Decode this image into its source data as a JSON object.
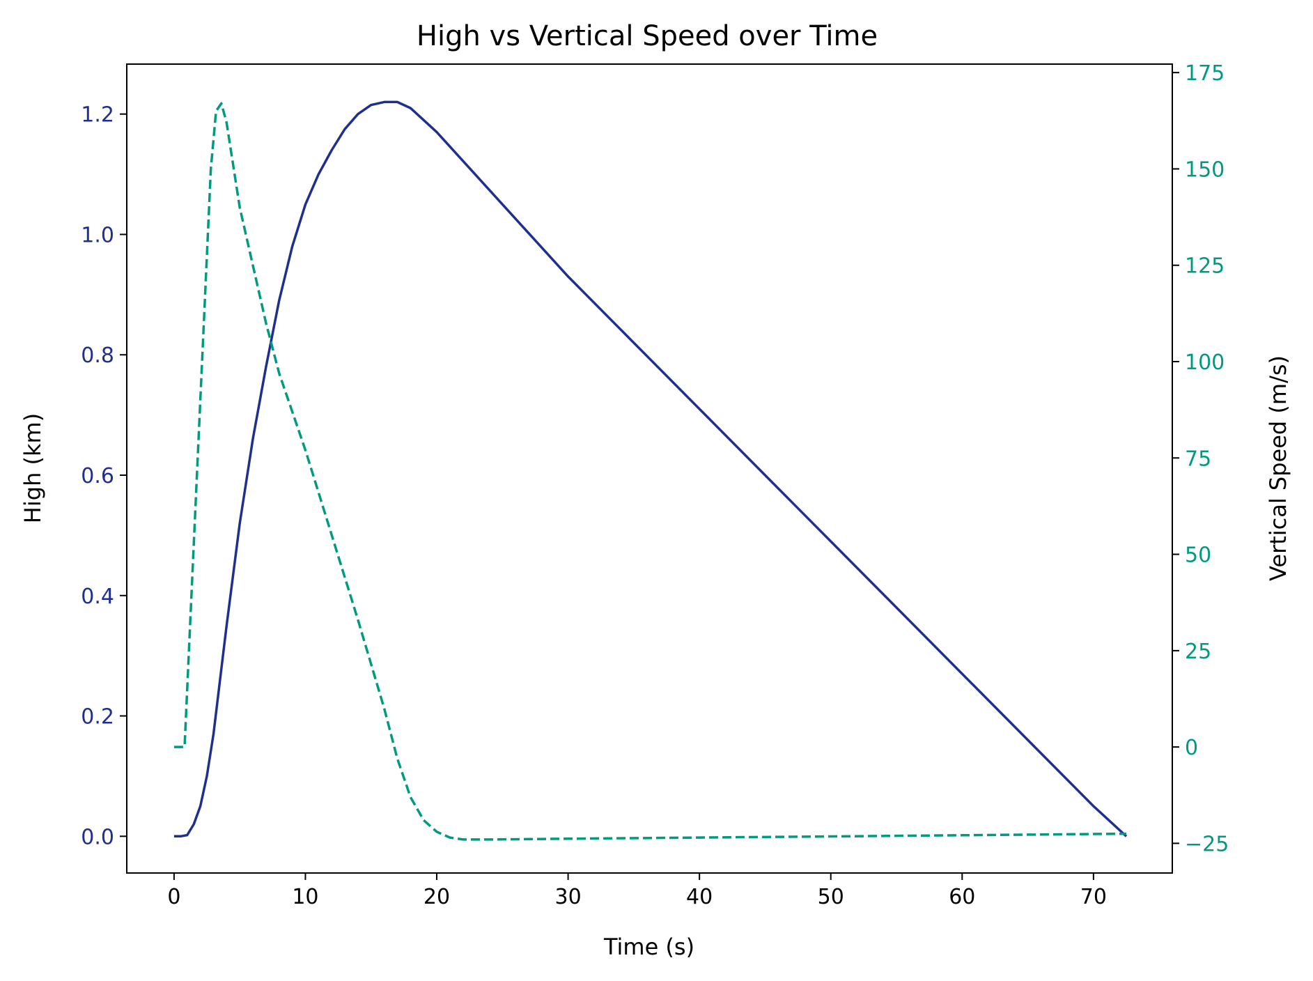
{
  "chart_data": {
    "type": "line",
    "title": "High vs Vertical Speed over Time",
    "xlabel": "Time (s)",
    "ylabel_left": "High (km)",
    "ylabel_right": "Vertical Speed (m/s)",
    "xlim": [
      -3.6,
      76
    ],
    "ylim_left": [
      -0.061,
      1.283
    ],
    "ylim_right": [
      -32.7,
      177.2
    ],
    "x_ticks": [
      0,
      10,
      20,
      30,
      40,
      50,
      60,
      70
    ],
    "x_tick_labels": [
      "0",
      "10",
      "20",
      "30",
      "40",
      "50",
      "60",
      "70"
    ],
    "y_left_ticks": [
      0.0,
      0.2,
      0.4,
      0.6,
      0.8,
      1.0,
      1.2
    ],
    "y_left_tick_labels": [
      "0.0",
      "0.2",
      "0.4",
      "0.6",
      "0.8",
      "1.0",
      "1.2"
    ],
    "y_right_ticks": [
      -25,
      0,
      25,
      50,
      75,
      100,
      125,
      150,
      175
    ],
    "y_right_tick_labels": [
      "−25",
      "0",
      "25",
      "50",
      "75",
      "100",
      "125",
      "150",
      "175"
    ],
    "grid": false,
    "colors": {
      "high": "#1f2f8f",
      "speed": "#009b7d"
    },
    "series": [
      {
        "axis": "left",
        "style": "solid",
        "x": [
          0,
          0.5,
          1,
          1.5,
          2,
          2.5,
          3,
          3.5,
          4,
          5,
          6,
          7,
          8,
          9,
          10,
          11,
          12,
          13,
          14,
          15,
          16,
          17,
          18,
          20,
          25,
          30,
          35,
          40,
          45,
          50,
          55,
          60,
          65,
          70,
          72.5
        ],
        "values": [
          0,
          0,
          0.002,
          0.02,
          0.05,
          0.1,
          0.17,
          0.26,
          0.35,
          0.52,
          0.66,
          0.78,
          0.89,
          0.98,
          1.05,
          1.1,
          1.14,
          1.175,
          1.2,
          1.215,
          1.22,
          1.22,
          1.21,
          1.17,
          1.05,
          0.93,
          0.82,
          0.71,
          0.6,
          0.49,
          0.38,
          0.27,
          0.16,
          0.05,
          0.0
        ]
      },
      {
        "axis": "right",
        "style": "dashed",
        "x": [
          0,
          0.4,
          0.8,
          1.2,
          2,
          2.8,
          3.2,
          3.6,
          4,
          5,
          6,
          7,
          8,
          10,
          12,
          14,
          16,
          17,
          18,
          19,
          20,
          21,
          22,
          24,
          30,
          40,
          50,
          60,
          72.5
        ],
        "values": [
          0,
          0,
          0,
          30,
          90,
          150,
          165,
          167,
          162,
          140,
          125,
          110,
          97,
          77,
          55,
          33,
          10,
          -3,
          -13,
          -19,
          -22,
          -23.5,
          -24,
          -24,
          -23.8,
          -23.5,
          -23.2,
          -22.9,
          -22.5
        ]
      }
    ]
  }
}
